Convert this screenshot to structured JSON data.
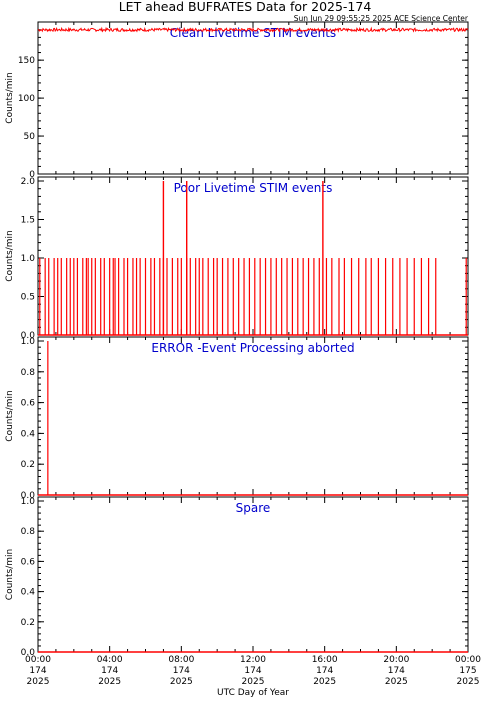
{
  "header": {
    "title": "LET ahead BUFRATES Data for 2025-174",
    "stamp": "Sun Jun 29 09:55:25 2025 ACE Science Center"
  },
  "x_axis": {
    "label": "UTC Day of Year",
    "ticks": [
      {
        "time": "00:00",
        "doy": "174",
        "year": "2025"
      },
      {
        "time": "04:00",
        "doy": "174",
        "year": "2025"
      },
      {
        "time": "08:00",
        "doy": "174",
        "year": "2025"
      },
      {
        "time": "12:00",
        "doy": "174",
        "year": "2025"
      },
      {
        "time": "16:00",
        "doy": "174",
        "year": "2025"
      },
      {
        "time": "20:00",
        "doy": "174",
        "year": "2025"
      },
      {
        "time": "00:00",
        "doy": "175",
        "year": "2025"
      }
    ]
  },
  "colors": {
    "line": "#ff0000",
    "panel_title": "#0000cc",
    "axis": "#000000"
  },
  "chart_data": [
    {
      "type": "line",
      "title": "Clean Livetime STIM events",
      "ylabel": "Counts/min",
      "ylim": [
        0,
        195
      ],
      "yticks": [
        "0",
        "50",
        "100",
        "150"
      ],
      "xlim": [
        "2025-174 00:00",
        "2025-175 00:00"
      ],
      "series": [
        {
          "kind": "noisy_band",
          "mean": 190,
          "spread": 2
        }
      ]
    },
    {
      "type": "line",
      "title": "Poor Livetime STIM events",
      "ylabel": "Counts/min",
      "ylim": [
        0,
        2
      ],
      "yticks": [
        "0.0",
        "0.5",
        "1.0",
        "1.5",
        "2.0"
      ],
      "xlim": [
        "2025-174 00:00",
        "2025-175 00:00"
      ],
      "series": [
        {
          "kind": "spikes",
          "baseline": 0,
          "spike_hours": [
            0.1,
            0.4,
            0.6,
            0.9,
            1.1,
            1.3,
            1.6,
            1.8,
            2.0,
            2.2,
            2.5,
            2.7,
            2.8,
            3.0,
            3.2,
            3.5,
            3.7,
            4.0,
            4.2,
            4.3,
            4.5,
            4.8,
            5.0,
            5.3,
            5.5,
            5.7,
            6.0,
            6.3,
            6.5,
            6.8,
            7.0,
            7.2,
            7.5,
            7.8,
            8.0,
            8.3,
            8.5,
            8.8,
            9.0,
            9.2,
            9.5,
            9.8,
            10.0,
            10.3,
            10.6,
            10.9,
            11.2,
            11.5,
            11.8,
            12.1,
            12.4,
            12.7,
            13.0,
            13.3,
            13.6,
            13.9,
            14.2,
            14.5,
            14.8,
            15.1,
            15.4,
            15.7,
            16.1,
            16.4,
            16.8,
            17.1,
            17.5,
            17.9,
            18.3,
            18.6,
            19.0,
            19.4,
            19.8,
            20.2,
            20.6,
            21.0,
            21.4,
            21.8,
            22.2,
            23.9
          ],
          "spike_value": 1,
          "double_spike_hours": [
            7.0,
            8.3,
            15.9
          ],
          "double_spike_value": 2
        }
      ]
    },
    {
      "type": "line",
      "title": "ERROR -Event Processing aborted",
      "ylabel": "Counts/min",
      "ylim": [
        0,
        1
      ],
      "yticks": [
        "0.0",
        "0.2",
        "0.4",
        "0.6",
        "0.8",
        "1.0"
      ],
      "xlim": [
        "2025-174 00:00",
        "2025-175 00:00"
      ],
      "series": [
        {
          "kind": "spikes",
          "baseline": 0,
          "spike_hours": [
            0.55
          ],
          "spike_value": 1
        }
      ]
    },
    {
      "type": "line",
      "title": "Spare",
      "ylabel": "Counts/min",
      "ylim": [
        0,
        1
      ],
      "yticks": [
        "0.0",
        "0.2",
        "0.4",
        "0.6",
        "0.8",
        "1.0"
      ],
      "xlim": [
        "2025-174 00:00",
        "2025-175 00:00"
      ],
      "series": [
        {
          "kind": "flat",
          "value": 0
        }
      ]
    }
  ]
}
